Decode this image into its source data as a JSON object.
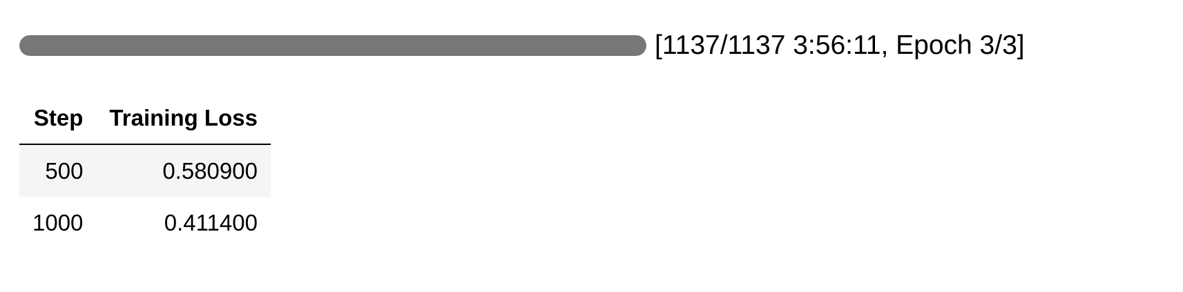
{
  "progress": {
    "value": 1137,
    "max": 1137,
    "fraction": 1.0,
    "label": "[1137/1137 3:56:11, Epoch 3/3]",
    "colors": {
      "fill": "#777777",
      "track": "#e6e6e6"
    }
  },
  "table": {
    "headers": [
      "Step",
      "Training Loss"
    ],
    "rows": [
      [
        "500",
        "0.580900"
      ],
      [
        "1000",
        "0.411400"
      ]
    ]
  }
}
